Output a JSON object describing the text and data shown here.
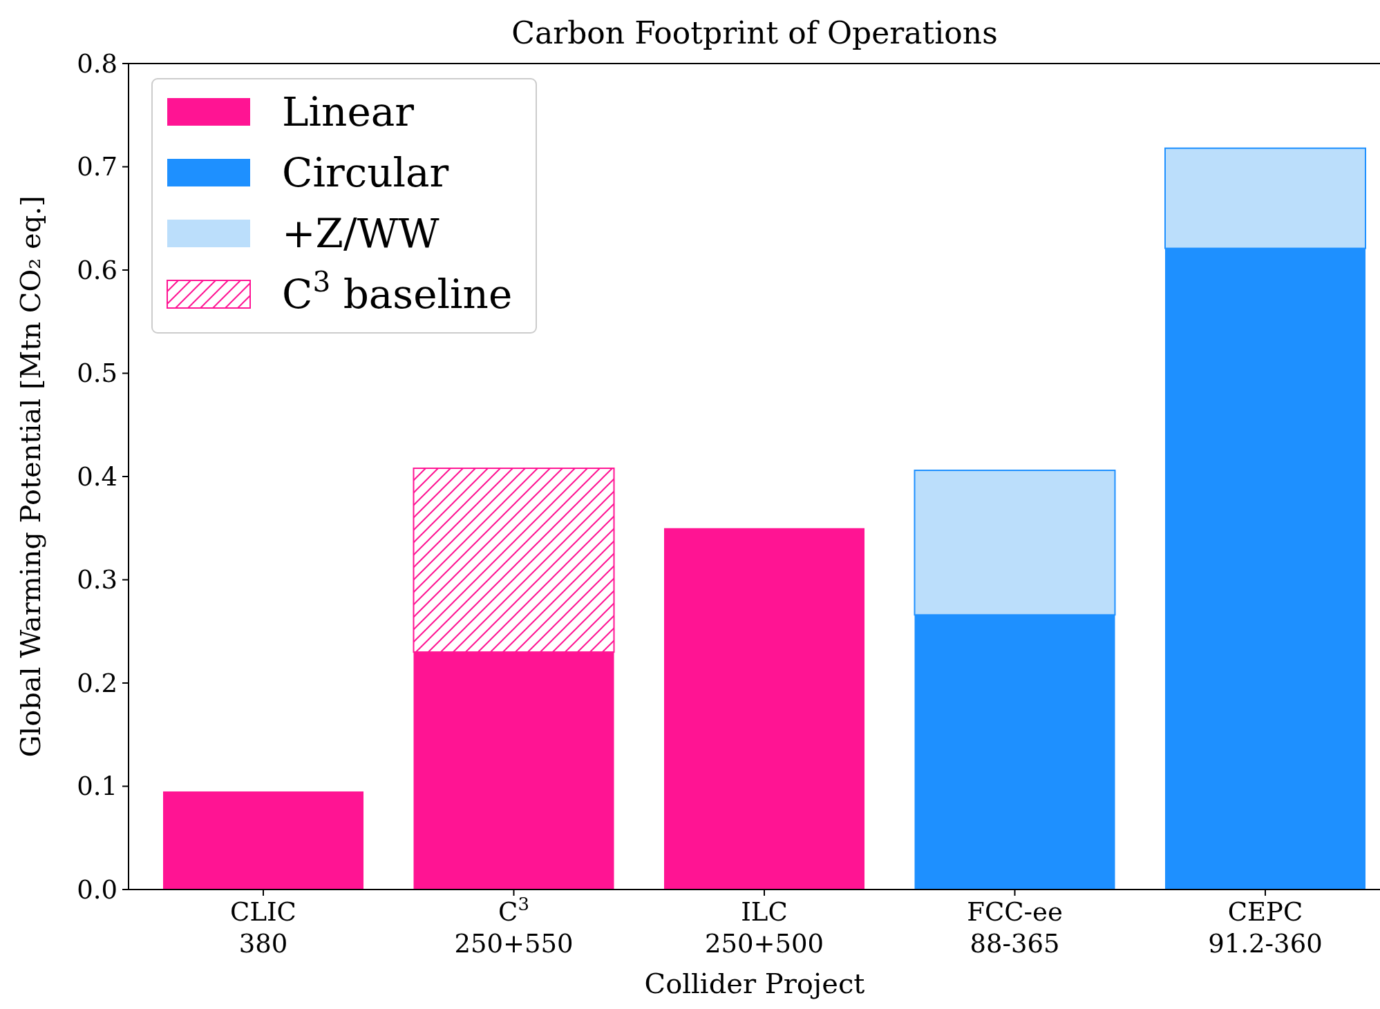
{
  "chart_data": {
    "type": "bar",
    "title": "Carbon Footprint of Operations",
    "xlabel": "Collider Project",
    "ylabel": "Global Warming Potential [Mtn CO₂ eq.]",
    "categories": [
      "CLIC\n380",
      "C$^{3}$\n250+550",
      "ILC\n250+500",
      "FCC-ee\n88-365",
      "CEPC\n91.2-360"
    ],
    "stacked": true,
    "series": [
      {
        "name": "Linear",
        "color": "#ff1493",
        "values": [
          0.095,
          0.23,
          0.35,
          null,
          null
        ]
      },
      {
        "name": "Circular",
        "color": "#1e90ff",
        "values": [
          null,
          null,
          null,
          0.266,
          0.621
        ]
      },
      {
        "name": "+Z/WW",
        "color": "#bbdefb",
        "values": [
          null,
          null,
          null,
          0.14,
          0.097
        ]
      },
      {
        "name": "C$^{3}$ baseline",
        "color": "#ff1493",
        "values": [
          null,
          0.178,
          null,
          null,
          null
        ]
      }
    ],
    "ylim": [
      0,
      0.8
    ],
    "yticks": [
      {
        "value": 0,
        "label": "0.0"
      },
      0.1,
      0.2,
      0.3,
      0.4,
      0.5,
      0.6,
      0.7,
      0.8
    ],
    "legend": "top left"
  }
}
